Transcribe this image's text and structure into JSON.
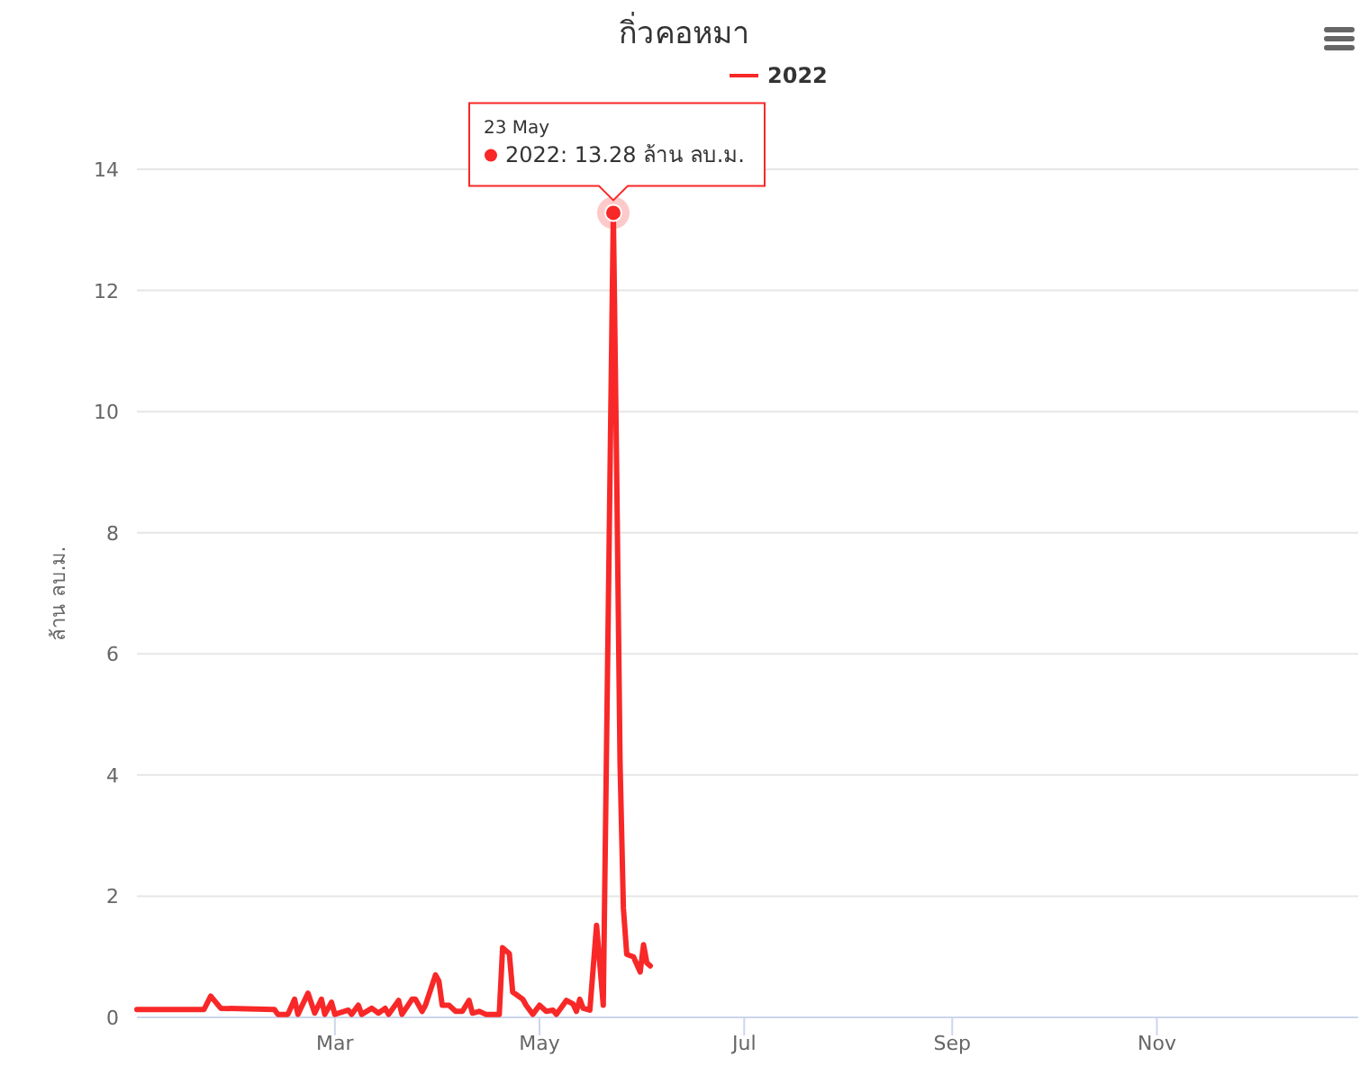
{
  "chart_data": {
    "type": "line",
    "title": "กิ่วคอหมา",
    "ylabel": "ล้าน ลบ.ม.",
    "x": [
      "2022-01-01",
      "2022-01-21",
      "2022-01-23",
      "2022-01-26",
      "2022-02-11",
      "2022-02-12",
      "2022-02-15",
      "2022-02-17",
      "2022-02-18",
      "2022-02-21",
      "2022-02-23",
      "2022-02-25",
      "2022-02-26",
      "2022-02-28",
      "2022-03-01",
      "2022-03-05",
      "2022-03-06",
      "2022-03-08",
      "2022-03-09",
      "2022-03-12",
      "2022-03-14",
      "2022-03-16",
      "2022-03-17",
      "2022-03-20",
      "2022-03-21",
      "2022-03-24",
      "2022-03-25",
      "2022-03-27",
      "2022-03-28",
      "2022-03-31",
      "2022-04-01",
      "2022-04-02",
      "2022-04-04",
      "2022-04-06",
      "2022-04-08",
      "2022-04-10",
      "2022-04-11",
      "2022-04-13",
      "2022-04-15",
      "2022-04-19",
      "2022-04-20",
      "2022-04-22",
      "2022-04-23",
      "2022-04-26",
      "2022-04-27",
      "2022-04-29",
      "2022-05-01",
      "2022-05-03",
      "2022-05-05",
      "2022-05-06",
      "2022-05-09",
      "2022-05-11",
      "2022-05-12",
      "2022-05-13",
      "2022-05-14",
      "2022-05-16",
      "2022-05-18",
      "2022-05-20",
      "2022-05-23",
      "2022-05-24",
      "2022-05-25",
      "2022-05-26",
      "2022-05-27",
      "2022-05-29",
      "2022-05-31",
      "2022-06-01",
      "2022-06-02",
      "2022-06-03"
    ],
    "series": [
      {
        "name": "2022",
        "color": "#f82828",
        "values": [
          0.13,
          0.13,
          0.35,
          0.15,
          0.13,
          0.05,
          0.05,
          0.3,
          0.05,
          0.4,
          0.07,
          0.3,
          0.05,
          0.25,
          0.05,
          0.12,
          0.05,
          0.2,
          0.05,
          0.15,
          0.07,
          0.15,
          0.05,
          0.28,
          0.05,
          0.3,
          0.3,
          0.1,
          0.2,
          0.7,
          0.6,
          0.2,
          0.2,
          0.1,
          0.1,
          0.28,
          0.07,
          0.1,
          0.05,
          0.05,
          1.15,
          1.05,
          0.42,
          0.3,
          0.2,
          0.05,
          0.2,
          0.1,
          0.12,
          0.05,
          0.28,
          0.22,
          0.1,
          0.3,
          0.15,
          0.12,
          1.52,
          0.2,
          13.28,
          9.0,
          4.2,
          1.8,
          1.04,
          1.0,
          0.75,
          1.2,
          0.9,
          0.85
        ]
      }
    ],
    "xlim": [
      "2022-01-01",
      "2022-12-31"
    ],
    "xticks": [
      {
        "value": "2022-03-01",
        "label": "Mar"
      },
      {
        "value": "2022-05-01",
        "label": "May"
      },
      {
        "value": "2022-07-01",
        "label": "Jul"
      },
      {
        "value": "2022-09-01",
        "label": "Sep"
      },
      {
        "value": "2022-11-01",
        "label": "Nov"
      }
    ],
    "ylim": [
      0,
      14
    ],
    "yticks": [
      0,
      2,
      4,
      6,
      8,
      10,
      12,
      14
    ],
    "grid": "y",
    "legend": "top",
    "marker": "none",
    "line_style": "solid",
    "annotations": [
      {
        "text": "23 May\n2022: 13.28 ล้าน ลบ.ม.",
        "x": "2022-05-23",
        "y": 13.28
      }
    ]
  }
}
